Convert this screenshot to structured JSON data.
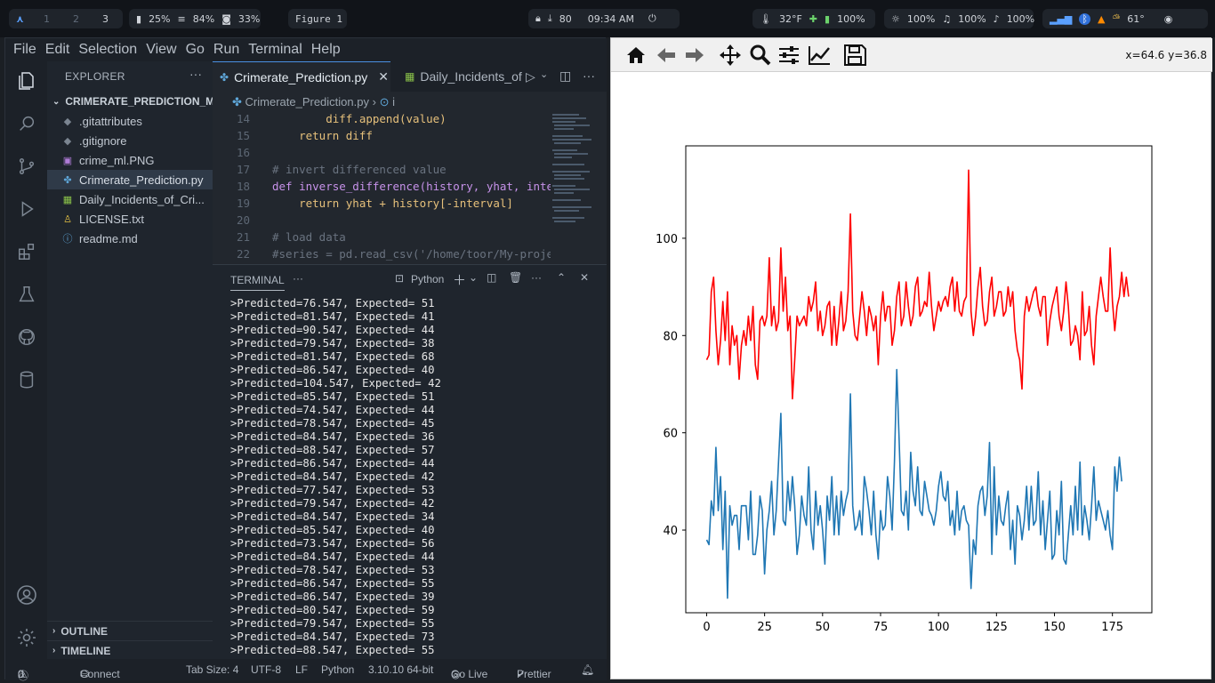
{
  "topbar": {
    "workspaces": [
      "1",
      "2",
      "3"
    ],
    "active_workspace": "3",
    "cpu": "25%",
    "mem": "84%",
    "disk": "33%",
    "window_title": "Figure 1",
    "downloads": "80",
    "time": "09:34 AM",
    "temp": "32°F",
    "battery": "100%",
    "brightness": "100%",
    "volume": "100%",
    "mic": "100%",
    "weather": "61°"
  },
  "vscode": {
    "menu": [
      "File",
      "Edit",
      "Selection",
      "View",
      "Go",
      "Run",
      "Terminal",
      "Help"
    ],
    "explorer_title": "EXPLORER",
    "project": "CRIMERATE_PREDICTION_ML...",
    "files": [
      ".gitattributes",
      ".gitignore",
      "crime_ml.PNG",
      "Crimerate_Prediction.py",
      "Daily_Incidents_of_Cri...",
      "LICENSE.txt",
      "readme.md"
    ],
    "outline": "OUTLINE",
    "timeline": "TIMELINE",
    "tabs": [
      "Crimerate_Prediction.py",
      "Daily_Incidents_of"
    ],
    "breadcrumb_file": "Crimerate_Prediction.py",
    "breadcrumb_symbol": "i",
    "code_lines": [
      {
        "n": "14",
        "t": "        diff.append(value)"
      },
      {
        "n": "15",
        "t": "    return diff"
      },
      {
        "n": "16",
        "t": ""
      },
      {
        "n": "17",
        "t": "# invert differenced value"
      },
      {
        "n": "18",
        "t": "def inverse_difference(history, yhat, interv"
      },
      {
        "n": "19",
        "t": "    return yhat + history[-interval]"
      },
      {
        "n": "20",
        "t": ""
      },
      {
        "n": "21",
        "t": "# load data"
      },
      {
        "n": "22",
        "t": "#series = pd.read_csv('/home/toor/My-project"
      }
    ],
    "terminal_title": "TERMINAL",
    "terminal_shell": "Python",
    "terminal_lines": [
      ">Predicted=76.547, Expected= 51",
      ">Predicted=81.547, Expected= 41",
      ">Predicted=90.547, Expected= 44",
      ">Predicted=79.547, Expected= 38",
      ">Predicted=81.547, Expected= 68",
      ">Predicted=86.547, Expected= 40",
      ">Predicted=104.547, Expected= 42",
      ">Predicted=85.547, Expected= 51",
      ">Predicted=74.547, Expected= 44",
      ">Predicted=78.547, Expected= 45",
      ">Predicted=84.547, Expected= 36",
      ">Predicted=88.547, Expected= 57",
      ">Predicted=86.547, Expected= 44",
      ">Predicted=84.547, Expected= 42",
      ">Predicted=77.547, Expected= 53",
      ">Predicted=79.547, Expected= 42",
      ">Predicted=84.547, Expected= 34",
      ">Predicted=85.547, Expected= 40",
      ">Predicted=73.547, Expected= 56",
      ">Predicted=84.547, Expected= 44",
      ">Predicted=78.547, Expected= 53",
      ">Predicted=86.547, Expected= 55",
      ">Predicted=86.547, Expected= 39",
      ">Predicted=80.547, Expected= 59",
      ">Predicted=79.547, Expected= 55",
      ">Predicted=84.547, Expected= 73",
      ">Predicted=88.547, Expected= 55"
    ],
    "status": {
      "errors": "0",
      "warnings": "0",
      "connect": "Connect",
      "tabsize": "Tab Size: 4",
      "encoding": "UTF-8",
      "eol": "LF",
      "language": "Python",
      "interpreter": "3.10.10 64-bit",
      "golive": "Go Live",
      "prettier": "Prettier"
    }
  },
  "figure": {
    "coords": "x=64.6 y=36.8"
  },
  "chart_data": {
    "type": "line",
    "title": "",
    "xlabel": "",
    "ylabel": "",
    "xlim": [
      -9,
      192
    ],
    "ylim": [
      23,
      119
    ],
    "xticks": [
      0,
      25,
      50,
      75,
      100,
      125,
      150,
      175
    ],
    "yticks": [
      40,
      60,
      80,
      100
    ],
    "grid": false,
    "colors": {
      "expected": "#1f77b4",
      "predicted": "#ff0000"
    },
    "series": [
      {
        "values": [
          38,
          37,
          46,
          43,
          57,
          44,
          51,
          36,
          48,
          26,
          45,
          41,
          43,
          43,
          36,
          45,
          45,
          45,
          38,
          48,
          35,
          35,
          39,
          47,
          44,
          31,
          40,
          44,
          50,
          39,
          44,
          54,
          64,
          42,
          41,
          50,
          44,
          51,
          45,
          35,
          39,
          47,
          43,
          41,
          53,
          40,
          36,
          48,
          41,
          45,
          40,
          33,
          47,
          42,
          51,
          39,
          47,
          39,
          48,
          43,
          46,
          48,
          68,
          45,
          40,
          41,
          44,
          39,
          51,
          48,
          44,
          39,
          48,
          39,
          34,
          44,
          40,
          41,
          51,
          47,
          40,
          54,
          73,
          59,
          44,
          43,
          48,
          40,
          56,
          48,
          45,
          53,
          44,
          43,
          50,
          47,
          44,
          43,
          41,
          44,
          49,
          52,
          47,
          46,
          50,
          41,
          44,
          39,
          48,
          40,
          44,
          45,
          42,
          41,
          28,
          38,
          35,
          45,
          48,
          49,
          43,
          47,
          58,
          35,
          53,
          39,
          47,
          42,
          41,
          45,
          48,
          36,
          42,
          33,
          45,
          43,
          38,
          42,
          49,
          40,
          49,
          41,
          42,
          52,
          39,
          46,
          36,
          42,
          48,
          34,
          35,
          44,
          39,
          50,
          34,
          33,
          39,
          45,
          39,
          49,
          40,
          54,
          39,
          45,
          42,
          38,
          45,
          53,
          42,
          46,
          44,
          42,
          40,
          44,
          39,
          36,
          53,
          48,
          55,
          50
        ]
      },
      {
        "values": [
          75,
          76,
          89,
          92,
          81,
          74,
          79,
          87,
          79,
          89,
          74,
          82,
          78,
          80,
          71,
          78,
          81,
          78,
          84,
          79,
          86,
          74,
          71,
          83,
          84,
          82,
          84,
          96,
          82,
          86,
          81,
          83,
          98,
          85,
          92,
          81,
          84,
          67,
          75,
          84,
          82,
          83,
          84,
          82,
          88,
          85,
          87,
          91,
          81,
          85,
          80,
          82,
          86,
          87,
          78,
          86,
          78,
          83,
          89,
          81,
          83,
          89,
          105,
          85,
          80,
          79,
          84,
          89,
          85,
          80,
          86,
          84,
          81,
          84,
          74,
          84,
          89,
          83,
          86,
          86,
          78,
          81,
          88,
          91,
          82,
          84,
          91,
          86,
          82,
          84,
          90,
          92,
          84,
          85,
          87,
          86,
          93,
          86,
          81,
          84,
          87,
          85,
          87,
          88,
          86,
          90,
          92,
          85,
          91,
          85,
          84,
          87,
          88,
          114,
          85,
          80,
          84,
          90,
          94,
          86,
          82,
          83,
          89,
          92,
          84,
          86,
          89,
          89,
          84,
          85,
          90,
          86,
          89,
          81,
          77,
          75,
          69,
          84,
          88,
          85,
          87,
          89,
          90,
          86,
          84,
          88,
          88,
          78,
          83,
          86,
          88,
          90,
          84,
          81,
          85,
          91,
          86,
          78,
          79,
          82,
          80,
          75,
          89,
          80,
          81,
          86,
          78,
          74,
          84,
          88,
          92,
          88,
          85,
          85,
          98,
          87,
          81,
          86,
          88,
          93,
          88,
          92,
          88
        ]
      }
    ]
  }
}
